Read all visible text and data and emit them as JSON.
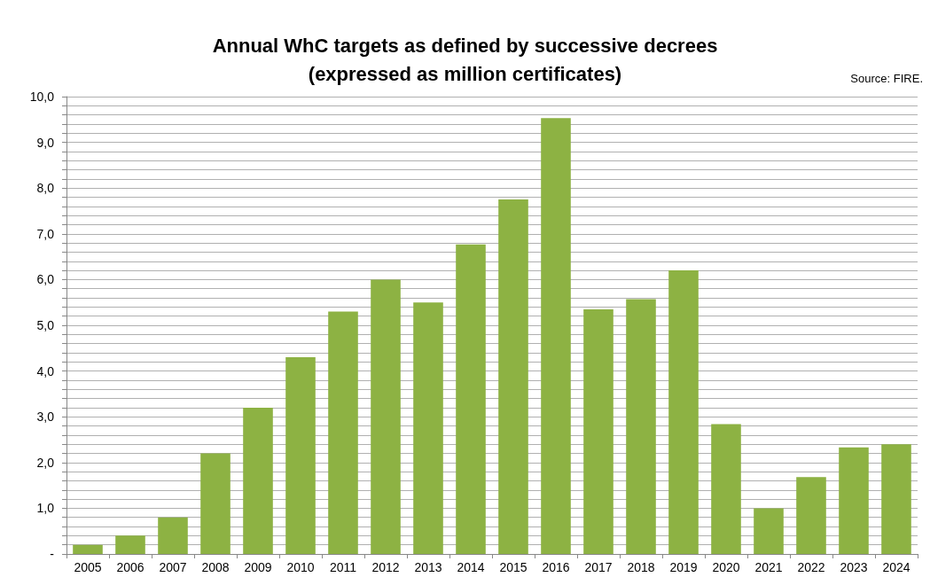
{
  "chart_data": {
    "type": "bar",
    "title": "Annual WhC targets as defined by successive decrees\n(expressed as million certificates)",
    "annotations": [
      "Source: FIRE."
    ],
    "categories": [
      "2005",
      "2006",
      "2007",
      "2008",
      "2009",
      "2010",
      "2011",
      "2012",
      "2013",
      "2014",
      "2015",
      "2016",
      "2017",
      "2018",
      "2019",
      "2020",
      "2021",
      "2022",
      "2023",
      "2024"
    ],
    "values": [
      0.2,
      0.4,
      0.8,
      2.2,
      3.2,
      4.3,
      5.3,
      6.0,
      5.5,
      6.77,
      7.75,
      9.53,
      5.35,
      5.57,
      6.2,
      2.84,
      1.0,
      1.68,
      2.33,
      2.4
    ],
    "color": "#8db243",
    "ylim": [
      0,
      10
    ],
    "yticks": [
      {
        "value": 0,
        "label": "-"
      },
      {
        "value": 0.2,
        "label": null
      },
      {
        "value": 0.4,
        "label": null
      },
      {
        "value": 0.6,
        "label": null
      },
      {
        "value": 0.8,
        "label": null
      },
      {
        "value": 1,
        "label": "1,0"
      },
      {
        "value": 1.2,
        "label": null
      },
      {
        "value": 1.4,
        "label": null
      },
      {
        "value": 1.6,
        "label": null
      },
      {
        "value": 1.8,
        "label": null
      },
      {
        "value": 2,
        "label": "2,0"
      },
      {
        "value": 2.2,
        "label": null
      },
      {
        "value": 2.4,
        "label": null
      },
      {
        "value": 2.6,
        "label": null
      },
      {
        "value": 2.8,
        "label": null
      },
      {
        "value": 3,
        "label": "3,0"
      },
      {
        "value": 3.2,
        "label": null
      },
      {
        "value": 3.4,
        "label": null
      },
      {
        "value": 3.6,
        "label": null
      },
      {
        "value": 3.8,
        "label": null
      },
      {
        "value": 4,
        "label": "4,0"
      },
      {
        "value": 4.2,
        "label": null
      },
      {
        "value": 4.4,
        "label": null
      },
      {
        "value": 4.6,
        "label": null
      },
      {
        "value": 4.8,
        "label": null
      },
      {
        "value": 5,
        "label": "5,0"
      },
      {
        "value": 5.2,
        "label": null
      },
      {
        "value": 5.4,
        "label": null
      },
      {
        "value": 5.6,
        "label": null
      },
      {
        "value": 5.8,
        "label": null
      },
      {
        "value": 6,
        "label": "6,0"
      },
      {
        "value": 6.2,
        "label": null
      },
      {
        "value": 6.4,
        "label": null
      },
      {
        "value": 6.6,
        "label": null
      },
      {
        "value": 6.8,
        "label": null
      },
      {
        "value": 7,
        "label": "7,0"
      },
      {
        "value": 7.2,
        "label": null
      },
      {
        "value": 7.4,
        "label": null
      },
      {
        "value": 7.6,
        "label": null
      },
      {
        "value": 7.8,
        "label": null
      },
      {
        "value": 8,
        "label": "8,0"
      },
      {
        "value": 8.2,
        "label": null
      },
      {
        "value": 8.4,
        "label": null
      },
      {
        "value": 8.6,
        "label": null
      },
      {
        "value": 8.8,
        "label": null
      },
      {
        "value": 9,
        "label": "9,0"
      },
      {
        "value": 9.2,
        "label": null
      },
      {
        "value": 9.4,
        "label": null
      },
      {
        "value": 9.6,
        "label": null
      },
      {
        "value": 9.8,
        "label": null
      },
      {
        "value": 10,
        "label": "10,0"
      }
    ],
    "grid": "y"
  }
}
